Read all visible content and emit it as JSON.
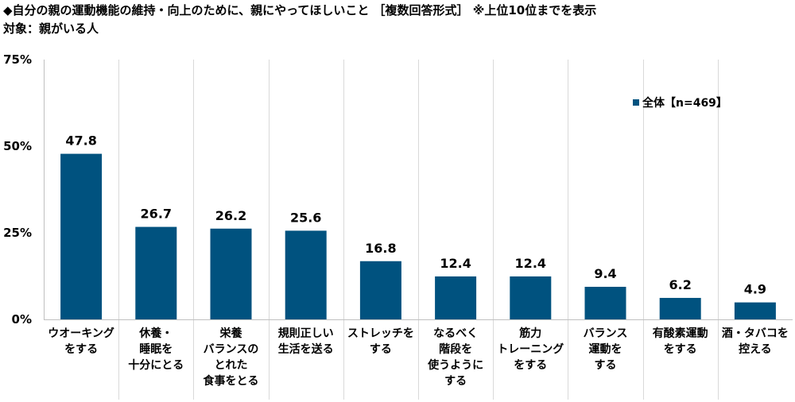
{
  "header": {
    "title": "◆自分の親の運動機能の維持・向上のために、親にやってほしいこと ［複数回答形式］ ※上位10位までを表示",
    "subtitle": "対象：親がいる人"
  },
  "chart_data": {
    "type": "bar",
    "categories": [
      [
        "ウオーキング",
        "をする"
      ],
      [
        "休養・",
        "睡眠を",
        "十分にとる"
      ],
      [
        "栄養",
        "バランスの",
        "とれた",
        "食事をとる"
      ],
      [
        "規則正しい",
        "生活を送る"
      ],
      [
        "ストレッチを",
        "する"
      ],
      [
        "なるべく",
        "階段を",
        "使うように",
        "する"
      ],
      [
        "筋力",
        "トレーニング",
        "をする"
      ],
      [
        "バランス",
        "運動を",
        "する"
      ],
      [
        "有酸素運動",
        "をする"
      ],
      [
        "酒・タバコを",
        "控える"
      ]
    ],
    "series": [
      {
        "name": "全体【n=469】",
        "values": [
          47.8,
          26.7,
          26.2,
          25.6,
          16.8,
          12.4,
          12.4,
          9.4,
          6.2,
          4.9
        ],
        "labels": [
          "47.8",
          "26.7",
          "26.2",
          "25.6",
          "16.8",
          "12.4",
          "12.4",
          "9.4",
          "6.2",
          "4.9"
        ]
      }
    ],
    "ylim": [
      0,
      75
    ],
    "yticks": [
      0,
      25,
      50,
      75
    ],
    "ytick_labels": [
      "0%",
      "25%",
      "50%",
      "75%"
    ],
    "grid": "vertical-separators",
    "legend_position": "top-right",
    "colors": {
      "bar": "#00527f",
      "grid": "#d9d9d9",
      "axis": "#bfbfbf"
    }
  }
}
